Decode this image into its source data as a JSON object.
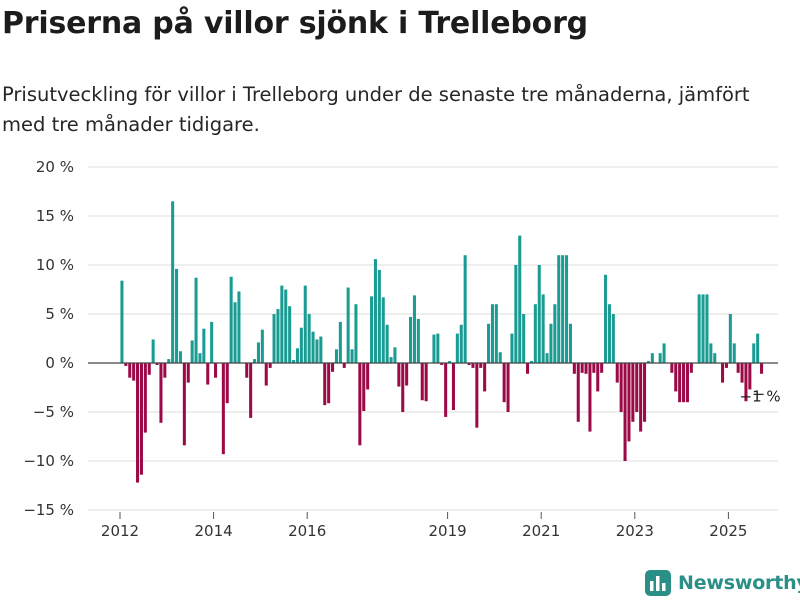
{
  "title": "Priserna på villor sjönk i Trelleborg",
  "subtitle": "Prisutveckling för villor i Trelleborg under de senaste tre månaderna, jämfört med tre månader tidigare.",
  "brand": "Newsworthy",
  "colors": {
    "positive": "#1a9c92",
    "negative": "#9b0a47",
    "brand": "#2a8f86",
    "grid": "#dcdcdc"
  },
  "chart_data": {
    "type": "bar",
    "ylim": [
      -15,
      20
    ],
    "yticks": [
      -15,
      -10,
      -5,
      0,
      5,
      10,
      15,
      20
    ],
    "ytick_labels": [
      "−15 %",
      "−10 %",
      "−5 %",
      "0 %",
      "5 %",
      "10 %",
      "15 %",
      "20 %"
    ],
    "xticks": [
      2012,
      2014,
      2016,
      2019,
      2021,
      2023,
      2025
    ],
    "xtick_labels": [
      "2012",
      "2014",
      "2016",
      "2019",
      "2021",
      "2023",
      "2025"
    ],
    "start": "2012-01",
    "values": [
      8.4,
      -0.3,
      -1.5,
      -1.8,
      -12.2,
      -11.4,
      -7.1,
      -1.2,
      2.4,
      -0.2,
      -6.1,
      -1.5,
      0.4,
      16.5,
      9.6,
      1.2,
      -8.4,
      -2,
      2.3,
      8.7,
      1,
      3.5,
      -2.2,
      4.2,
      -1.5,
      0,
      -9.3,
      -4.1,
      8.8,
      6.2,
      7.3,
      0,
      -1.5,
      -5.6,
      0.4,
      2.1,
      3.4,
      -2.3,
      -0.5,
      5,
      5.5,
      7.9,
      7.5,
      5.8,
      0.3,
      1.5,
      3.6,
      7.9,
      5,
      3.2,
      2.4,
      2.7,
      -4.3,
      -4.1,
      -0.9,
      1.4,
      4.2,
      -0.5,
      7.7,
      1.4,
      6,
      -8.4,
      -4.9,
      -2.7,
      6.8,
      10.6,
      9.5,
      6.7,
      3.9,
      0.6,
      1.6,
      -2.4,
      -5,
      -2.3,
      4.7,
      6.9,
      4.5,
      -3.8,
      -3.9,
      0,
      2.9,
      3,
      -0.2,
      -5.5,
      0.2,
      -4.8,
      3,
      3.9,
      11,
      -0.2,
      -0.5,
      -6.6,
      -0.5,
      -2.9,
      4,
      6,
      6,
      1.1,
      -4,
      -5,
      3,
      10,
      13,
      5,
      -1.1,
      0.2,
      6,
      10,
      7,
      1,
      4,
      6,
      11,
      11,
      11,
      4,
      -1.1,
      -6,
      -1,
      -1.1,
      -7,
      -1,
      -2.9,
      -1,
      9,
      6,
      5,
      -2,
      -5,
      -10,
      -8,
      -6,
      -5,
      -7,
      -6,
      0.2,
      1,
      0,
      1,
      2,
      0,
      -1,
      -2.9,
      -4,
      -4,
      -4,
      -1,
      0,
      7,
      7,
      7,
      2,
      1,
      0,
      -2,
      -0.5,
      5,
      2,
      -1,
      -2,
      -3.9,
      -2.7,
      2,
      3,
      -1.1
    ]
  },
  "annotation": {
    "label": "−1 %"
  }
}
